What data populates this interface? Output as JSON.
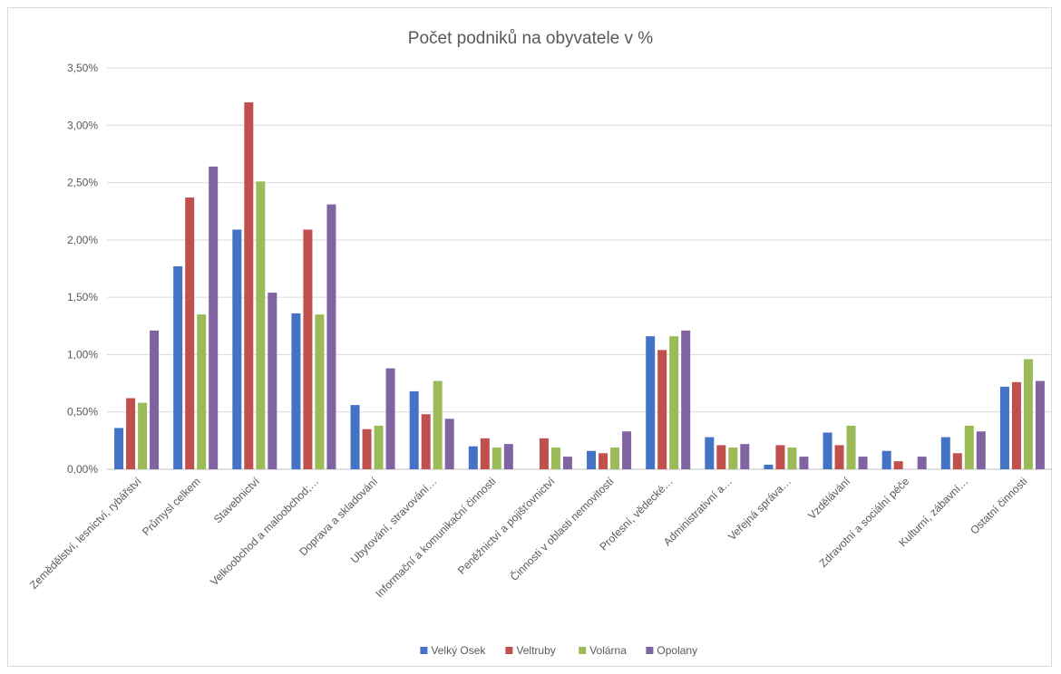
{
  "chart_data": {
    "type": "bar",
    "title": "Počet podniků na obyvatele v %",
    "xlabel": "",
    "ylabel": "",
    "ylim": [
      0,
      0.035
    ],
    "ytick_values": [
      0,
      0.005,
      0.01,
      0.015,
      0.02,
      0.025,
      0.03,
      0.035
    ],
    "ytick_labels": [
      "0,00%",
      "0,50%",
      "1,00%",
      "1,50%",
      "2,00%",
      "2,50%",
      "3,00%",
      "3,50%"
    ],
    "grid": true,
    "legend_position": "bottom",
    "categories": [
      "Zemědělství, lesnictví, rybářství",
      "Průmysl celkem",
      "Stavebnictví",
      "Velkoobchod a maloobchod;…",
      "Doprava a skladování",
      "Ubytování, stravování…",
      "Informační a komunikační činnosti",
      "Peněžnictví a pojišťovnictví",
      "Činnosti v oblasti nemovitostí",
      "Profesní, vědecké…",
      "Administrativní a…",
      "Veřejná správa…",
      "Vzdělávání",
      "Zdravotní a sociální péče",
      "Kulturní, zábavní…",
      "Ostatní činnosti"
    ],
    "series": [
      {
        "name": "Velký Osek",
        "color": "#4472C4",
        "values": [
          0.0036,
          0.0177,
          0.0209,
          0.0136,
          0.0056,
          0.0068,
          0.002,
          0,
          0.0016,
          0.0116,
          0.0028,
          0.0004,
          0.0032,
          0.0016,
          0.0028,
          0.0072
        ]
      },
      {
        "name": "Veltruby",
        "color": "#C0504D",
        "values": [
          0.0062,
          0.0237,
          0.032,
          0.0209,
          0.0035,
          0.0048,
          0.0027,
          0.0027,
          0.0014,
          0.0104,
          0.0021,
          0.0021,
          0.0021,
          0.0007,
          0.0014,
          0.0076
        ]
      },
      {
        "name": "Volárna",
        "color": "#9BBB59",
        "values": [
          0.0058,
          0.0135,
          0.0251,
          0.0135,
          0.0038,
          0.0077,
          0.0019,
          0.0019,
          0.0019,
          0.0116,
          0.0019,
          0.0019,
          0.0038,
          0,
          0.0038,
          0.0096
        ]
      },
      {
        "name": "Opolany",
        "color": "#8064A2",
        "values": [
          0.0121,
          0.0264,
          0.0154,
          0.0231,
          0.0088,
          0.0044,
          0.0022,
          0.0011,
          0.0033,
          0.0121,
          0.0022,
          0.0011,
          0.0011,
          0.0011,
          0.0033,
          0.0077
        ]
      }
    ]
  }
}
